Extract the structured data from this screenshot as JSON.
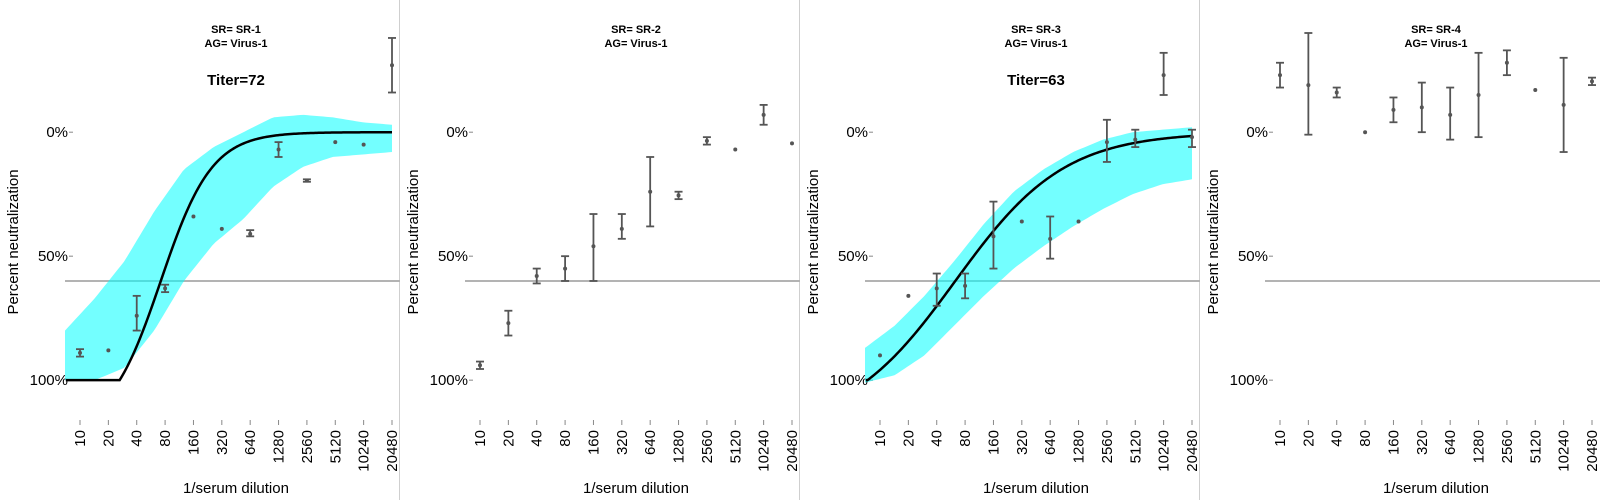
{
  "chart_data": [
    {
      "type": "scatter",
      "title": "SR= SR-1",
      "subtitle": "AG= Virus-1",
      "annotation": "Titer=72",
      "xlabel": "1/serum dilution",
      "ylabel": "Percent neutralization",
      "categories": [
        "10",
        "20",
        "40",
        "80",
        "160",
        "320",
        "640",
        "1280",
        "2560",
        "5120",
        "10240",
        "20480"
      ],
      "yticks": [
        "0%",
        "50%",
        "100%"
      ],
      "reference_line": 60,
      "ylim": [
        108,
        -40
      ],
      "points": [
        {
          "x": "10",
          "y": 89,
          "lo": 87.5,
          "hi": 90.5
        },
        {
          "x": "20",
          "y": 88,
          "lo": 88,
          "hi": 88
        },
        {
          "x": "40",
          "y": 74,
          "lo": 66,
          "hi": 80
        },
        {
          "x": "80",
          "y": 63,
          "lo": 61.5,
          "hi": 64.5
        },
        {
          "x": "160",
          "y": 34,
          "lo": 34,
          "hi": 34
        },
        {
          "x": "320",
          "y": 39,
          "lo": 39,
          "hi": 39
        },
        {
          "x": "640",
          "y": 41,
          "lo": 39.5,
          "hi": 42
        },
        {
          "x": "1280",
          "y": 7,
          "lo": 4,
          "hi": 10
        },
        {
          "x": "2560",
          "y": 19.5,
          "lo": 19,
          "hi": 20
        },
        {
          "x": "5120",
          "y": 4,
          "lo": 4,
          "hi": 4
        },
        {
          "x": "10240",
          "y": 5,
          "lo": 5,
          "hi": 5
        },
        {
          "x": "20480",
          "y": -27,
          "lo": -38,
          "hi": -16
        }
      ],
      "fit": {
        "titer_x": 72,
        "top": 100,
        "slope": 1.6,
        "band_lower": [
          100,
          100,
          95,
          80,
          60,
          45,
          35,
          22,
          14,
          10,
          9,
          8
        ],
        "band_upper": [
          80,
          67,
          52,
          32,
          15,
          6,
          0,
          -6,
          -7,
          -6,
          -4,
          -3
        ]
      }
    },
    {
      "type": "scatter",
      "title": "SR= SR-2",
      "subtitle": "AG= Virus-1",
      "annotation": "",
      "xlabel": "1/serum dilution",
      "ylabel": "Percent neutralization",
      "categories": [
        "10",
        "20",
        "40",
        "80",
        "160",
        "320",
        "640",
        "1280",
        "2560",
        "5120",
        "10240",
        "20480"
      ],
      "yticks": [
        "0%",
        "50%",
        "100%"
      ],
      "reference_line": 60,
      "ylim": [
        108,
        -40
      ],
      "points": [
        {
          "x": "10",
          "y": 94,
          "lo": 92.5,
          "hi": 95.5
        },
        {
          "x": "20",
          "y": 77,
          "lo": 72,
          "hi": 82
        },
        {
          "x": "40",
          "y": 58,
          "lo": 55,
          "hi": 61
        },
        {
          "x": "80",
          "y": 55,
          "lo": 50,
          "hi": 60
        },
        {
          "x": "160",
          "y": 46,
          "lo": 33,
          "hi": 60
        },
        {
          "x": "320",
          "y": 39,
          "lo": 33,
          "hi": 43
        },
        {
          "x": "640",
          "y": 24,
          "lo": 10,
          "hi": 38
        },
        {
          "x": "1280",
          "y": 25.5,
          "lo": 24,
          "hi": 27
        },
        {
          "x": "2560",
          "y": 3.5,
          "lo": 2,
          "hi": 5
        },
        {
          "x": "5120",
          "y": 7,
          "lo": 7,
          "hi": 7
        },
        {
          "x": "10240",
          "y": -7,
          "lo": -11,
          "hi": -3
        },
        {
          "x": "20480",
          "y": 4.5,
          "lo": 4.5,
          "hi": 4.5
        }
      ],
      "fit": null
    },
    {
      "type": "scatter",
      "title": "SR= SR-3",
      "subtitle": "AG= Virus-1",
      "annotation": "Titer=63",
      "xlabel": "1/serum dilution",
      "ylabel": "Percent neutralization",
      "categories": [
        "10",
        "20",
        "40",
        "80",
        "160",
        "320",
        "640",
        "1280",
        "2560",
        "5120",
        "10240",
        "20480"
      ],
      "yticks": [
        "0%",
        "50%",
        "100%"
      ],
      "reference_line": 60,
      "ylim": [
        108,
        -40
      ],
      "points": [
        {
          "x": "10",
          "y": 90,
          "lo": 90,
          "hi": 90
        },
        {
          "x": "20",
          "y": 66,
          "lo": 66,
          "hi": 66
        },
        {
          "x": "40",
          "y": 63,
          "lo": 57,
          "hi": 70
        },
        {
          "x": "80",
          "y": 62,
          "lo": 57,
          "hi": 67
        },
        {
          "x": "160",
          "y": 42,
          "lo": 28,
          "hi": 55
        },
        {
          "x": "320",
          "y": 36,
          "lo": 36,
          "hi": 36
        },
        {
          "x": "640",
          "y": 43,
          "lo": 34,
          "hi": 51
        },
        {
          "x": "1280",
          "y": 36,
          "lo": 36,
          "hi": 36
        },
        {
          "x": "2560",
          "y": 4,
          "lo": -5,
          "hi": 12
        },
        {
          "x": "5120",
          "y": 3,
          "lo": -1,
          "hi": 6
        },
        {
          "x": "10240",
          "y": -23,
          "lo": -32,
          "hi": -15
        },
        {
          "x": "20480",
          "y": 2,
          "lo": -1,
          "hi": 6
        }
      ],
      "fit": {
        "titer_x": 63,
        "top": 100,
        "slope": 0.75,
        "band_lower": [
          101,
          98,
          90,
          78,
          66,
          55,
          46,
          38,
          31,
          25,
          21,
          19
        ],
        "band_upper": [
          87,
          78,
          66,
          52,
          37,
          24,
          15,
          8,
          3,
          0,
          -1,
          -2
        ]
      }
    },
    {
      "type": "scatter",
      "title": "SR= SR-4",
      "subtitle": "AG= Virus-1",
      "annotation": "",
      "xlabel": "1/serum dilution",
      "ylabel": "Percent neutralization",
      "categories": [
        "10",
        "20",
        "40",
        "80",
        "160",
        "320",
        "640",
        "1280",
        "2560",
        "5120",
        "10240",
        "20480"
      ],
      "yticks": [
        "0%",
        "50%",
        "100%"
      ],
      "reference_line": 60,
      "ylim": [
        108,
        -40
      ],
      "points": [
        {
          "x": "10",
          "y": -23,
          "lo": -28,
          "hi": -18
        },
        {
          "x": "20",
          "y": -19,
          "lo": -40,
          "hi": 1
        },
        {
          "x": "40",
          "y": -16,
          "lo": -18,
          "hi": -14
        },
        {
          "x": "80",
          "y": 0,
          "lo": 0,
          "hi": 0
        },
        {
          "x": "160",
          "y": -9,
          "lo": -14,
          "hi": -4
        },
        {
          "x": "320",
          "y": -10,
          "lo": -20,
          "hi": 0
        },
        {
          "x": "640",
          "y": -7,
          "lo": -18,
          "hi": 3
        },
        {
          "x": "1280",
          "y": -15,
          "lo": -32,
          "hi": 2
        },
        {
          "x": "2560",
          "y": -28,
          "lo": -33,
          "hi": -23
        },
        {
          "x": "5120",
          "y": -17,
          "lo": -17,
          "hi": -17
        },
        {
          "x": "10240",
          "y": -11,
          "lo": -30,
          "hi": 8
        },
        {
          "x": "20480",
          "y": -20.5,
          "lo": -22,
          "hi": -19
        }
      ],
      "fit": null
    }
  ]
}
